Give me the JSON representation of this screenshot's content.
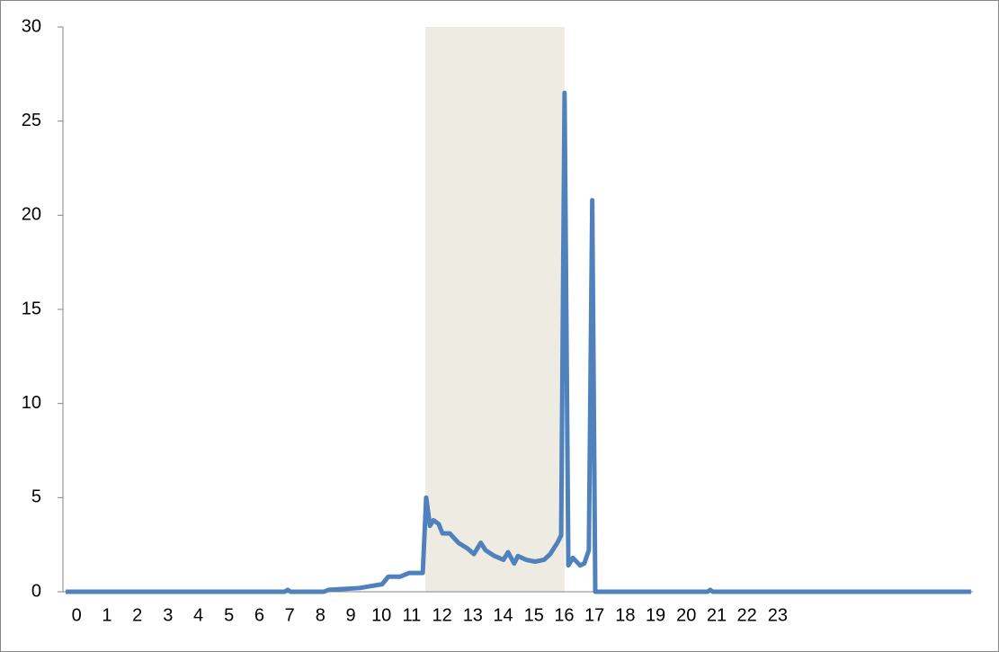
{
  "chart_data": {
    "type": "line",
    "x": [
      0.07,
      5.85,
      5.93,
      6.0,
      6.88,
      7.0,
      7.83,
      8.42,
      8.58,
      8.89,
      9.13,
      9.49,
      9.58,
      9.68,
      9.77,
      9.91,
      10.01,
      10.2,
      10.43,
      10.67,
      10.84,
      11.02,
      11.15,
      11.38,
      11.62,
      11.74,
      11.9,
      12.0,
      12.21,
      12.45,
      12.69,
      12.85,
      13.04,
      13.14,
      13.23,
      13.33,
      13.45,
      13.64,
      13.75,
      13.87,
      13.96,
      14.04,
      17.0,
      17.07,
      17.14,
      18.97,
      20.87,
      23.95
    ],
    "series": [
      {
        "color": "#4f81bd",
        "values": [
          0,
          0,
          0.1,
          0,
          0,
          0.1,
          0.2,
          0.4,
          0.8,
          0.8,
          1.0,
          1.0,
          5.0,
          3.5,
          3.8,
          3.6,
          3.1,
          3.1,
          2.6,
          2.3,
          2.0,
          2.6,
          2.2,
          1.9,
          1.7,
          2.1,
          1.5,
          1.9,
          1.7,
          1.6,
          1.7,
          2.0,
          2.6,
          3.0,
          26.5,
          1.4,
          1.8,
          1.4,
          1.5,
          2.2,
          20.8,
          0,
          0,
          0.1,
          0,
          0,
          0,
          0
        ]
      }
    ],
    "highlight": {
      "range": [
        9.56,
        13.23
      ],
      "color": "#eeebe2"
    },
    "xlim": [
      0,
      24
    ],
    "xticks": [
      {
        "value": 0.36,
        "label": "0"
      },
      {
        "value": 1.16,
        "label": "1"
      },
      {
        "value": 1.96,
        "label": "2"
      },
      {
        "value": 2.77,
        "label": "3"
      },
      {
        "value": 3.57,
        "label": "4"
      },
      {
        "value": 4.38,
        "label": "5"
      },
      {
        "value": 5.18,
        "label": "6"
      },
      {
        "value": 5.98,
        "label": "7"
      },
      {
        "value": 6.79,
        "label": "8"
      },
      {
        "value": 7.59,
        "label": "9"
      },
      {
        "value": 8.4,
        "label": "10"
      },
      {
        "value": 9.2,
        "label": "11"
      },
      {
        "value": 10.0,
        "label": "12"
      },
      {
        "value": 10.81,
        "label": "13"
      },
      {
        "value": 11.61,
        "label": "14"
      },
      {
        "value": 12.42,
        "label": "15"
      },
      {
        "value": 13.22,
        "label": "16"
      },
      {
        "value": 14.02,
        "label": "17"
      },
      {
        "value": 14.83,
        "label": "18"
      },
      {
        "value": 15.63,
        "label": "19"
      },
      {
        "value": 16.44,
        "label": "20"
      },
      {
        "value": 17.24,
        "label": "21"
      },
      {
        "value": 18.04,
        "label": "22"
      },
      {
        "value": 18.85,
        "label": "23"
      }
    ],
    "ylim": [
      0,
      30
    ],
    "yticks": [
      0,
      5,
      10,
      15,
      20,
      25,
      30
    ],
    "grid": false
  }
}
